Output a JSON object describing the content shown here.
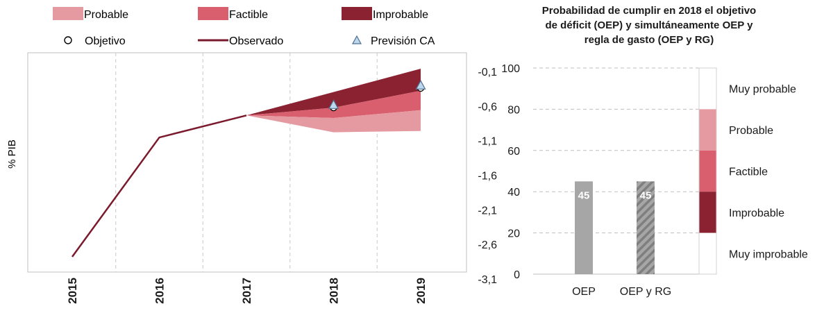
{
  "legend": {
    "probable": "Probable",
    "factible": "Factible",
    "improbable": "Improbable",
    "objetivo": "Objetivo",
    "observado": "Observado",
    "prevision": "Previsión CA"
  },
  "colors": {
    "probable": "#e59aa1",
    "factible": "#d95f6e",
    "improbable": "#8b2232",
    "observado": "#7a1a2c",
    "bar": "#a6a6a6",
    "bar_hatch": "#7f7f7f",
    "axis": "#7f7f7f"
  },
  "chart_data": [
    {
      "type": "area",
      "title": "",
      "xlabel": "",
      "ylabel": "% PIB",
      "categories": [
        "2015",
        "2016",
        "2017",
        "2018",
        "2019"
      ],
      "y_right_ticks": [
        "-0,1",
        "-0,6",
        "-1,1",
        "-1,6",
        "-2,1",
        "-2,6",
        "-3,1"
      ],
      "ylim": [
        -3.1,
        0.1
      ],
      "grid": "vertical-dashed",
      "observado": [
        -2.8,
        -0.96,
        -0.62
      ],
      "fan_bands": {
        "years": [
          "2017",
          "2018",
          "2019"
        ],
        "probable_low": [
          -0.62,
          -0.88,
          -0.86
        ],
        "probable_high": [
          -0.62,
          -0.66,
          -0.54
        ],
        "factible_high": [
          -0.62,
          -0.5,
          -0.24
        ],
        "improbable_high": [
          -0.62,
          -0.26,
          0.1
        ]
      },
      "objetivo": {
        "2018": -0.5,
        "2019": -0.2
      },
      "prevision_ca": {
        "2018": -0.46,
        "2019": -0.16
      }
    },
    {
      "type": "bar",
      "title": "Probabilidad de cumplir en 2018 el objetivo de déficit (OEP) y simultáneamente OEP y regla de gasto (OEP y RG)",
      "title_lines": [
        "Probabilidad de cumplir en 2018 el objetivo",
        "de déficit (OEP) y simultáneamente OEP y",
        "regla de gasto (OEP y RG)"
      ],
      "categories": [
        "OEP",
        "OEP y RG"
      ],
      "values": [
        45,
        45
      ],
      "data_labels": [
        "45",
        "45"
      ],
      "ylim": [
        0,
        100
      ],
      "y_ticks": [
        "0",
        "20",
        "40",
        "60",
        "80",
        "100"
      ],
      "grid": "horizontal-dashed",
      "probability_scale": [
        {
          "label": "Muy probable",
          "from": 80,
          "to": 100
        },
        {
          "label": "Probable",
          "from": 60,
          "to": 80
        },
        {
          "label": "Factible",
          "from": 40,
          "to": 60
        },
        {
          "label": "Improbable",
          "from": 20,
          "to": 40
        },
        {
          "label": "Muy improbable",
          "from": 0,
          "to": 20
        }
      ]
    }
  ]
}
